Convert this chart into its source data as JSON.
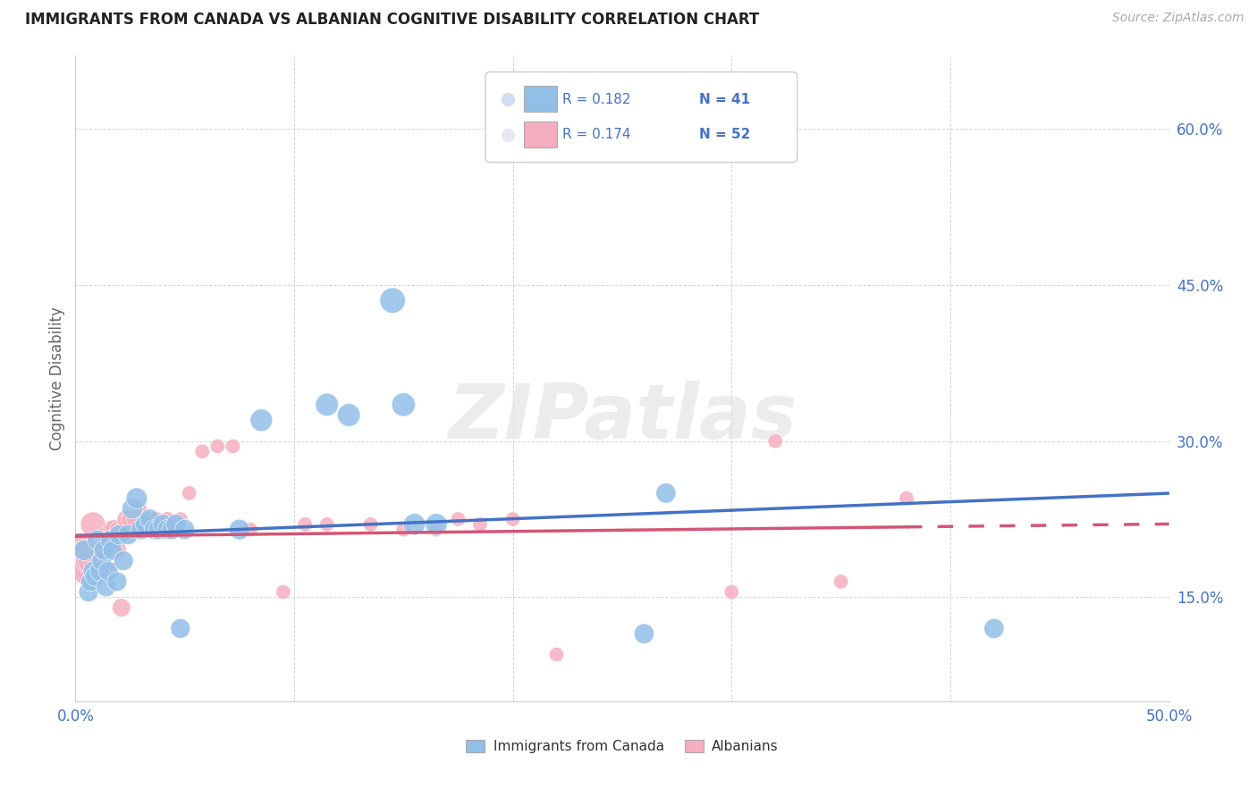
{
  "title": "IMMIGRANTS FROM CANADA VS ALBANIAN COGNITIVE DISABILITY CORRELATION CHART",
  "source": "Source: ZipAtlas.com",
  "ylabel": "Cognitive Disability",
  "xlim": [
    0.0,
    0.5
  ],
  "ylim": [
    0.05,
    0.67
  ],
  "xticks": [
    0.0,
    0.1,
    0.2,
    0.3,
    0.4,
    0.5
  ],
  "xticklabels": [
    "0.0%",
    "",
    "",
    "",
    "",
    "50.0%"
  ],
  "yticks": [
    0.15,
    0.3,
    0.45,
    0.6
  ],
  "yticklabels": [
    "15.0%",
    "30.0%",
    "45.0%",
    "60.0%"
  ],
  "legend_r1": "0.182",
  "legend_n1": "41",
  "legend_r2": "0.174",
  "legend_n2": "52",
  "legend_label1": "Immigrants from Canada",
  "legend_label2": "Albanians",
  "color_blue": "#92bfe8",
  "color_pink": "#f5aec0",
  "trendline_blue": "#4472c4",
  "trendline_pink": "#d45575",
  "title_color": "#222222",
  "axis_label_color": "#666666",
  "tick_color": "#4472c4",
  "grid_color": "#d0d0d0",
  "watermark": "ZIPatlas",
  "blue_x": [
    0.004,
    0.006,
    0.007,
    0.008,
    0.009,
    0.01,
    0.011,
    0.012,
    0.013,
    0.014,
    0.015,
    0.016,
    0.017,
    0.019,
    0.02,
    0.022,
    0.024,
    0.026,
    0.028,
    0.03,
    0.032,
    0.034,
    0.036,
    0.038,
    0.04,
    0.042,
    0.044,
    0.046,
    0.048,
    0.05,
    0.075,
    0.085,
    0.115,
    0.125,
    0.145,
    0.15,
    0.155,
    0.165,
    0.26,
    0.27,
    0.42
  ],
  "blue_y": [
    0.195,
    0.155,
    0.165,
    0.175,
    0.17,
    0.205,
    0.175,
    0.185,
    0.195,
    0.16,
    0.175,
    0.205,
    0.195,
    0.165,
    0.21,
    0.185,
    0.21,
    0.235,
    0.245,
    0.215,
    0.22,
    0.225,
    0.215,
    0.215,
    0.22,
    0.215,
    0.215,
    0.22,
    0.12,
    0.215,
    0.215,
    0.32,
    0.335,
    0.325,
    0.435,
    0.335,
    0.22,
    0.22,
    0.115,
    0.25,
    0.12
  ],
  "blue_size": [
    55,
    50,
    50,
    50,
    52,
    52,
    50,
    50,
    50,
    50,
    50,
    50,
    50,
    50,
    52,
    50,
    52,
    55,
    58,
    52,
    52,
    52,
    52,
    52,
    52,
    52,
    52,
    52,
    50,
    52,
    55,
    65,
    68,
    68,
    85,
    72,
    62,
    62,
    52,
    52,
    52
  ],
  "pink_x": [
    0.002,
    0.003,
    0.004,
    0.005,
    0.006,
    0.007,
    0.008,
    0.009,
    0.01,
    0.011,
    0.012,
    0.013,
    0.014,
    0.015,
    0.016,
    0.017,
    0.018,
    0.019,
    0.02,
    0.021,
    0.022,
    0.023,
    0.025,
    0.027,
    0.029,
    0.031,
    0.033,
    0.035,
    0.037,
    0.039,
    0.042,
    0.045,
    0.048,
    0.052,
    0.058,
    0.065,
    0.072,
    0.08,
    0.095,
    0.105,
    0.115,
    0.135,
    0.15,
    0.165,
    0.175,
    0.185,
    0.2,
    0.22,
    0.3,
    0.32,
    0.35,
    0.38
  ],
  "pink_y": [
    0.195,
    0.185,
    0.19,
    0.175,
    0.185,
    0.185,
    0.22,
    0.185,
    0.175,
    0.185,
    0.175,
    0.195,
    0.175,
    0.21,
    0.205,
    0.215,
    0.215,
    0.195,
    0.215,
    0.14,
    0.215,
    0.225,
    0.225,
    0.225,
    0.235,
    0.215,
    0.225,
    0.22,
    0.225,
    0.215,
    0.225,
    0.22,
    0.225,
    0.25,
    0.29,
    0.295,
    0.295,
    0.215,
    0.155,
    0.22,
    0.22,
    0.22,
    0.215,
    0.215,
    0.225,
    0.22,
    0.225,
    0.095,
    0.155,
    0.3,
    0.165,
    0.245
  ],
  "pink_size": [
    160,
    140,
    120,
    100,
    90,
    85,
    80,
    75,
    70,
    65,
    60,
    58,
    56,
    54,
    52,
    50,
    50,
    48,
    46,
    44,
    42,
    40,
    38,
    36,
    34,
    32,
    30,
    30,
    30,
    30,
    30,
    28,
    28,
    28,
    28,
    28,
    28,
    28,
    28,
    28,
    28,
    28,
    28,
    28,
    28,
    28,
    28,
    28,
    28,
    28,
    28,
    28
  ]
}
